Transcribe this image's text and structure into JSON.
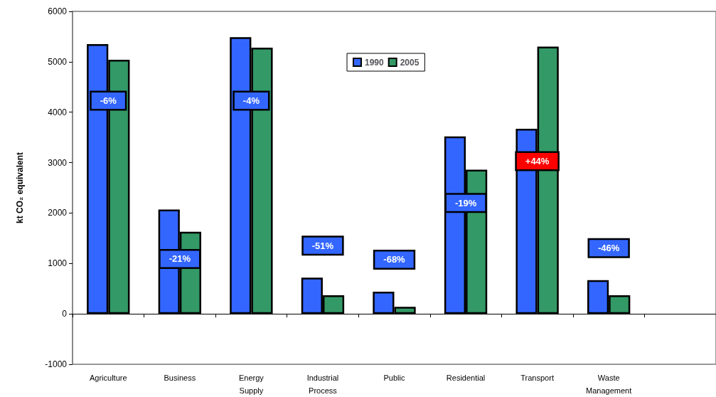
{
  "chart_data": {
    "type": "bar",
    "ylabel": "kt CO₂ equivalent",
    "categories": [
      "Agriculture",
      "Business",
      "Energy\nSupply",
      "Industrial\nProcess",
      "Public",
      "Residential",
      "Transport",
      "Waste\nManagement",
      null
    ],
    "series": [
      {
        "name": "1990",
        "color": "#3366ff",
        "values": [
          5350,
          2070,
          5490,
          720,
          440,
          3520,
          3670,
          670,
          null
        ]
      },
      {
        "name": "2005",
        "color": "#339966",
        "values": [
          5040,
          1630,
          5280,
          370,
          140,
          2860,
          5300,
          370,
          null
        ]
      }
    ],
    "ylim": [
      -1000,
      6000
    ],
    "yticks": [
      -1000,
      0,
      1000,
      2000,
      3000,
      4000,
      5000,
      6000
    ],
    "annotations": [
      {
        "text": "-6%",
        "x": "Agriculture",
        "y": 4230
      },
      {
        "text": "-21%",
        "x": "Business",
        "y": 1090
      },
      {
        "text": "-4%",
        "x": "Energy\nSupply",
        "y": 4230
      },
      "-51%",
      "-68%",
      {
        "text": "-19%",
        "x": "Residential",
        "y": 2200
      },
      {
        "text": "+44%",
        "x": "Transport",
        "y": 3030
      },
      "-46%"
    ],
    "legend": "top"
  }
}
